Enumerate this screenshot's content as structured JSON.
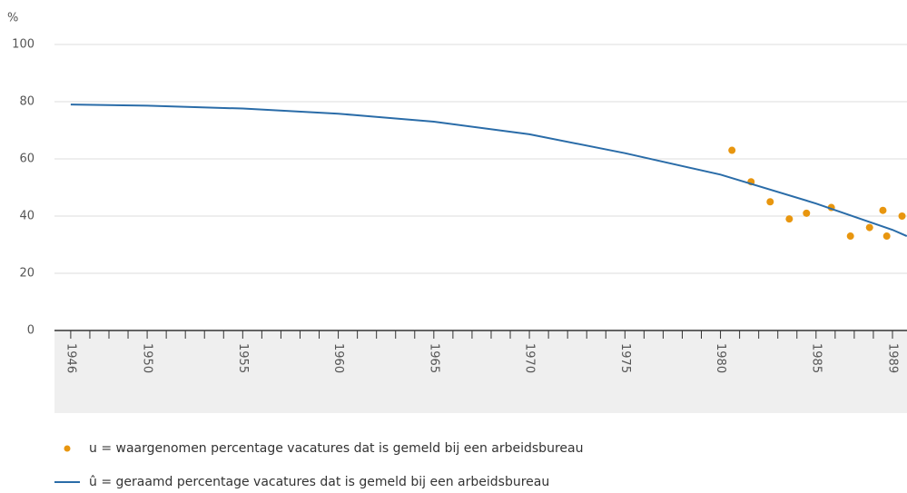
{
  "chart_data": {
    "type": "line",
    "y_unit": "%",
    "xlim": [
      1945.15,
      1989.76
    ],
    "ylim": [
      0,
      100
    ],
    "yticks": [
      0,
      20,
      40,
      60,
      80,
      100
    ],
    "xticks": [
      1946,
      1950,
      1955,
      1960,
      1965,
      1970,
      1975,
      1980,
      1985,
      1989
    ],
    "xminorticks": [
      1946,
      1947,
      1948,
      1949,
      1950,
      1951,
      1952,
      1953,
      1954,
      1955,
      1956,
      1957,
      1958,
      1959,
      1960,
      1961,
      1962,
      1963,
      1964,
      1965,
      1966,
      1967,
      1968,
      1969,
      1970,
      1971,
      1972,
      1973,
      1974,
      1975,
      1976,
      1977,
      1978,
      1979,
      1980,
      1981,
      1982,
      1983,
      1984,
      1985,
      1986,
      1987,
      1988,
      1989
    ],
    "grid": true,
    "series": [
      {
        "name": "u = waargenomen percentage vacatures dat is gemeld bij een arbeidsbureau",
        "type": "scatter",
        "color": "#e8960f",
        "x": [
          1980.6,
          1981.6,
          1982.6,
          1983.6,
          1984.5,
          1985.8,
          1986.8,
          1987.8,
          1988.5,
          1988.7,
          1989.5
        ],
        "values": [
          63,
          52,
          45,
          39,
          41,
          43,
          33,
          36,
          42,
          33,
          40
        ]
      },
      {
        "name": "û = geraamd percentage vacatures dat is gemeld bij een arbeidsbureau",
        "type": "line",
        "color": "#2a6ca8",
        "x": [
          1946,
          1950,
          1955,
          1960,
          1965,
          1970,
          1975,
          1980,
          1985,
          1989,
          1989.75
        ],
        "values": [
          79,
          78.6,
          77.6,
          75.8,
          73,
          68.6,
          62,
          54.5,
          44.4,
          35.2,
          33
        ]
      }
    ]
  }
}
